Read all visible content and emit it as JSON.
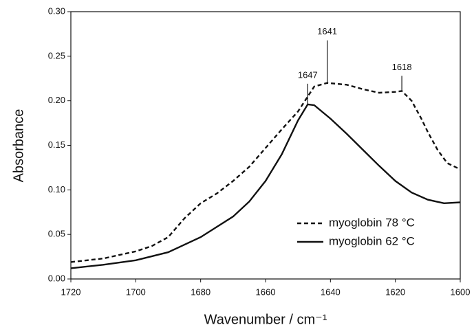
{
  "chart_data": {
    "type": "line",
    "xlabel": "Wavenumber / cm⁻¹",
    "ylabel": "Absorbance",
    "xlim": [
      1720,
      1600
    ],
    "xticks": [
      1720,
      1700,
      1680,
      1660,
      1640,
      1620,
      1600
    ],
    "ylim": [
      0,
      0.3
    ],
    "yticks": [
      {
        "value": 0,
        "label": "0.00"
      },
      {
        "value": 0.05,
        "label": "0.05"
      },
      {
        "value": 0.1,
        "label": "0.10"
      },
      {
        "value": 0.15,
        "label": "0.15"
      },
      {
        "value": 0.2,
        "label": "0.20"
      },
      {
        "value": 0.25,
        "label": "0.25"
      },
      {
        "value": 0.3,
        "label": "0.30"
      }
    ],
    "legend": "lower right",
    "series": [
      {
        "name": "myoglobin 78 °C",
        "color": "#111111",
        "dash": true,
        "x": [
          1720,
          1710,
          1700,
          1695,
          1690,
          1685,
          1680,
          1675,
          1670,
          1665,
          1660,
          1655,
          1650,
          1645,
          1641,
          1635,
          1630,
          1625,
          1620,
          1618,
          1615,
          1612,
          1610,
          1607,
          1604,
          1600
        ],
        "values": [
          0.019,
          0.023,
          0.031,
          0.037,
          0.047,
          0.068,
          0.085,
          0.096,
          0.11,
          0.126,
          0.147,
          0.168,
          0.188,
          0.216,
          0.22,
          0.218,
          0.213,
          0.209,
          0.21,
          0.211,
          0.2,
          0.18,
          0.165,
          0.145,
          0.13,
          0.123
        ]
      },
      {
        "name": "myoglobin 62 °C",
        "color": "#111111",
        "dash": false,
        "x": [
          1720,
          1710,
          1700,
          1690,
          1680,
          1670,
          1665,
          1660,
          1655,
          1650,
          1647,
          1645,
          1640,
          1635,
          1630,
          1625,
          1620,
          1615,
          1610,
          1605,
          1600
        ],
        "values": [
          0.012,
          0.016,
          0.021,
          0.03,
          0.047,
          0.07,
          0.087,
          0.11,
          0.14,
          0.178,
          0.196,
          0.195,
          0.18,
          0.163,
          0.145,
          0.127,
          0.11,
          0.097,
          0.089,
          0.085,
          0.086
        ]
      }
    ],
    "annotations": [
      {
        "x": 1647,
        "y": 0.196
      },
      {
        "x": 1641,
        "y": 0.22
      },
      {
        "x": 1618,
        "y": 0.211
      }
    ]
  }
}
